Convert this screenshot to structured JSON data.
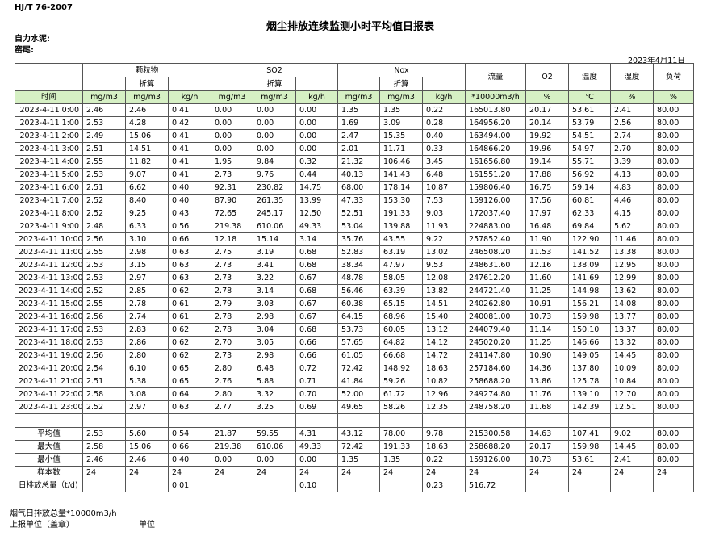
{
  "header": {
    "standard": "HJ/T  76-2007",
    "title": "烟尘排放连续监测小时平均值日报表",
    "company": "自力水泥:",
    "unit": "窑尾:",
    "date": "2023年4月11日"
  },
  "table": {
    "groups": [
      "颗粒物",
      "SO2",
      "Nox",
      "流量",
      "O2",
      "温度",
      "湿度",
      "负荷"
    ],
    "converted": [
      "折算",
      "折算",
      "折算"
    ],
    "time_label": "时间",
    "units": [
      "mg/m3",
      "mg/m3",
      "kg/h",
      "mg/m3",
      "mg/m3",
      "kg/h",
      "mg/m3",
      "mg/m3",
      "kg/h",
      "*10000m3/h",
      "%",
      "℃",
      "%",
      "%"
    ],
    "rows": [
      [
        "2023-4-11 0:00",
        "2.46",
        "2.46",
        "0.41",
        "0.00",
        "0.00",
        "0.00",
        "1.35",
        "1.35",
        "0.22",
        "165013.80",
        "20.17",
        "53.61",
        "2.41",
        "80.00"
      ],
      [
        "2023-4-11 1:00",
        "2.53",
        "4.28",
        "0.42",
        "0.00",
        "0.00",
        "0.00",
        "1.69",
        "3.09",
        "0.28",
        "164956.20",
        "20.14",
        "53.79",
        "2.56",
        "80.00"
      ],
      [
        "2023-4-11 2:00",
        "2.49",
        "15.06",
        "0.41",
        "0.00",
        "0.00",
        "0.00",
        "2.47",
        "15.35",
        "0.40",
        "163494.00",
        "19.92",
        "54.51",
        "2.74",
        "80.00"
      ],
      [
        "2023-4-11 3:00",
        "2.51",
        "14.51",
        "0.41",
        "0.00",
        "0.00",
        "0.00",
        "2.01",
        "11.71",
        "0.33",
        "164866.20",
        "19.96",
        "54.97",
        "2.70",
        "80.00"
      ],
      [
        "2023-4-11 4:00",
        "2.55",
        "11.82",
        "0.41",
        "1.95",
        "9.84",
        "0.32",
        "21.32",
        "106.46",
        "3.45",
        "161656.80",
        "19.14",
        "55.71",
        "3.39",
        "80.00"
      ],
      [
        "2023-4-11 5:00",
        "2.53",
        "9.07",
        "0.41",
        "2.73",
        "9.76",
        "0.44",
        "40.13",
        "141.43",
        "6.48",
        "161551.20",
        "17.88",
        "56.92",
        "4.13",
        "80.00"
      ],
      [
        "2023-4-11 6:00",
        "2.51",
        "6.62",
        "0.40",
        "92.31",
        "230.82",
        "14.75",
        "68.00",
        "178.14",
        "10.87",
        "159806.40",
        "16.75",
        "59.14",
        "4.83",
        "80.00"
      ],
      [
        "2023-4-11 7:00",
        "2.52",
        "8.40",
        "0.40",
        "87.90",
        "261.35",
        "13.99",
        "47.33",
        "153.30",
        "7.53",
        "159126.00",
        "17.56",
        "60.81",
        "4.46",
        "80.00"
      ],
      [
        "2023-4-11 8:00",
        "2.52",
        "9.25",
        "0.43",
        "72.65",
        "245.17",
        "12.50",
        "52.51",
        "191.33",
        "9.03",
        "172037.40",
        "17.97",
        "62.33",
        "4.15",
        "80.00"
      ],
      [
        "2023-4-11 9:00",
        "2.48",
        "6.33",
        "0.56",
        "219.38",
        "610.06",
        "49.33",
        "53.04",
        "139.88",
        "11.93",
        "224883.00",
        "16.48",
        "69.84",
        "5.62",
        "80.00"
      ],
      [
        "2023-4-11 10:00",
        "2.56",
        "3.10",
        "0.66",
        "12.18",
        "15.14",
        "3.14",
        "35.76",
        "43.55",
        "9.22",
        "257852.40",
        "11.90",
        "122.90",
        "11.46",
        "80.00"
      ],
      [
        "2023-4-11 11:00",
        "2.55",
        "2.98",
        "0.63",
        "2.75",
        "3.19",
        "0.68",
        "52.83",
        "63.19",
        "13.02",
        "246508.20",
        "11.53",
        "141.52",
        "13.38",
        "80.00"
      ],
      [
        "2023-4-11 12:00",
        "2.53",
        "3.15",
        "0.63",
        "2.73",
        "3.41",
        "0.68",
        "38.34",
        "47.97",
        "9.53",
        "248631.60",
        "12.16",
        "138.09",
        "12.95",
        "80.00"
      ],
      [
        "2023-4-11 13:00",
        "2.53",
        "2.97",
        "0.63",
        "2.73",
        "3.22",
        "0.67",
        "48.78",
        "58.05",
        "12.08",
        "247612.20",
        "11.60",
        "141.69",
        "12.99",
        "80.00"
      ],
      [
        "2023-4-11 14:00",
        "2.52",
        "2.85",
        "0.62",
        "2.78",
        "3.14",
        "0.68",
        "56.46",
        "63.39",
        "13.82",
        "244721.40",
        "11.25",
        "144.98",
        "13.62",
        "80.00"
      ],
      [
        "2023-4-11 15:00",
        "2.55",
        "2.78",
        "0.61",
        "2.79",
        "3.03",
        "0.67",
        "60.38",
        "65.15",
        "14.51",
        "240262.80",
        "10.91",
        "156.21",
        "14.08",
        "80.00"
      ],
      [
        "2023-4-11 16:00",
        "2.56",
        "2.74",
        "0.61",
        "2.78",
        "2.98",
        "0.67",
        "64.15",
        "68.96",
        "15.40",
        "240081.00",
        "10.73",
        "159.98",
        "13.77",
        "80.00"
      ],
      [
        "2023-4-11 17:00",
        "2.53",
        "2.83",
        "0.62",
        "2.78",
        "3.04",
        "0.68",
        "53.73",
        "60.05",
        "13.12",
        "244079.40",
        "11.14",
        "150.10",
        "13.37",
        "80.00"
      ],
      [
        "2023-4-11 18:00",
        "2.53",
        "2.86",
        "0.62",
        "2.70",
        "3.05",
        "0.66",
        "57.65",
        "64.82",
        "14.12",
        "245020.20",
        "11.25",
        "146.66",
        "13.32",
        "80.00"
      ],
      [
        "2023-4-11 19:00",
        "2.56",
        "2.80",
        "0.62",
        "2.73",
        "2.98",
        "0.66",
        "61.05",
        "66.68",
        "14.72",
        "241147.80",
        "10.90",
        "149.05",
        "14.45",
        "80.00"
      ],
      [
        "2023-4-11 20:00",
        "2.54",
        "6.10",
        "0.65",
        "2.80",
        "6.48",
        "0.72",
        "72.42",
        "148.92",
        "18.63",
        "257184.60",
        "14.36",
        "137.80",
        "10.09",
        "80.00"
      ],
      [
        "2023-4-11 21:00",
        "2.51",
        "5.38",
        "0.65",
        "2.76",
        "5.88",
        "0.71",
        "41.84",
        "59.26",
        "10.82",
        "258688.20",
        "13.86",
        "125.78",
        "10.84",
        "80.00"
      ],
      [
        "2023-4-11 22:00",
        "2.58",
        "3.08",
        "0.64",
        "2.80",
        "3.32",
        "0.70",
        "52.00",
        "61.72",
        "12.96",
        "249274.80",
        "11.76",
        "139.10",
        "12.70",
        "80.00"
      ],
      [
        "2023-4-11 23:00",
        "2.52",
        "2.97",
        "0.63",
        "2.77",
        "3.25",
        "0.69",
        "49.65",
        "58.26",
        "12.35",
        "248758.20",
        "11.68",
        "142.39",
        "12.51",
        "80.00"
      ]
    ],
    "summary": [
      [
        "平均值",
        "2.53",
        "5.60",
        "0.54",
        "21.87",
        "59.55",
        "4.31",
        "43.12",
        "78.00",
        "9.78",
        "215300.58",
        "14.63",
        "107.41",
        "9.02",
        "80.00"
      ],
      [
        "最大值",
        "2.58",
        "15.06",
        "0.66",
        "219.38",
        "610.06",
        "49.33",
        "72.42",
        "191.33",
        "18.63",
        "258688.20",
        "20.17",
        "159.98",
        "14.45",
        "80.00"
      ],
      [
        "最小值",
        "2.46",
        "2.46",
        "0.40",
        "0.00",
        "0.00",
        "0.00",
        "1.35",
        "1.35",
        "0.22",
        "159126.00",
        "10.73",
        "53.61",
        "2.41",
        "80.00"
      ],
      [
        "样本数",
        "24",
        "24",
        "24",
        "24",
        "24",
        "24",
        "24",
        "24",
        "24",
        "24",
        "24",
        "24",
        "24",
        "24"
      ],
      [
        "日排放总量（t/d)",
        null,
        null,
        "0.01",
        null,
        null,
        "0.10",
        null,
        null,
        "0.23",
        "516.72",
        null,
        null,
        null,
        null
      ]
    ]
  },
  "footer": {
    "note": "烟气日排放总量*10000m3/h",
    "reporter": "上报单位（盖章）",
    "unit": "单位"
  }
}
